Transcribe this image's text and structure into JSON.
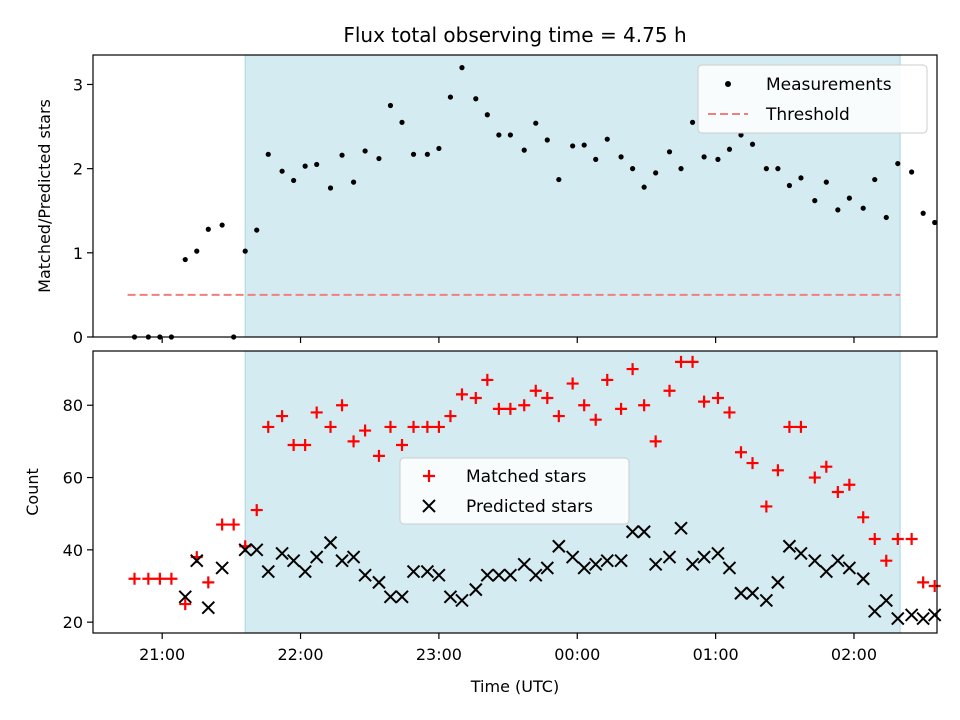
{
  "chart_data": [
    {
      "type": "scatter",
      "title": "Flux total observing time = 4.75 h",
      "xlabel": "",
      "ylabel": "Matched/Predicted stars",
      "xlim": [
        "20:30",
        "02:36"
      ],
      "ylim": [
        0,
        3.35
      ],
      "yticks": [
        0,
        1,
        2,
        3
      ],
      "shaded_region": [
        "21:36",
        "02:20"
      ],
      "legend": {
        "placement": "top-right",
        "entries": [
          "Measurements",
          "Threshold"
        ]
      },
      "threshold": {
        "name": "Threshold",
        "value": 0.5,
        "x": [
          "20:45",
          "02:20"
        ],
        "color": "#f08080"
      },
      "series": [
        {
          "name": "Measurements",
          "color": "#000000",
          "points": [
            [
              "20:48",
              0.0
            ],
            [
              "20:54",
              0.0
            ],
            [
              "20:59",
              0.0
            ],
            [
              "21:04",
              0.0
            ],
            [
              "21:10",
              0.92
            ],
            [
              "21:15",
              1.02
            ],
            [
              "21:20",
              1.28
            ],
            [
              "21:26",
              1.33
            ],
            [
              "21:31",
              0.0
            ],
            [
              "21:36",
              1.02
            ],
            [
              "21:41",
              1.27
            ],
            [
              "21:46",
              2.17
            ],
            [
              "21:52",
              1.97
            ],
            [
              "21:57",
              1.86
            ],
            [
              "22:02",
              2.03
            ],
            [
              "22:07",
              2.05
            ],
            [
              "22:13",
              1.77
            ],
            [
              "22:18",
              2.16
            ],
            [
              "22:23",
              1.84
            ],
            [
              "22:28",
              2.21
            ],
            [
              "22:34",
              2.12
            ],
            [
              "22:39",
              2.75
            ],
            [
              "22:44",
              2.55
            ],
            [
              "22:49",
              2.17
            ],
            [
              "22:55",
              2.17
            ],
            [
              "23:00",
              2.24
            ],
            [
              "23:05",
              2.85
            ],
            [
              "23:10",
              3.2
            ],
            [
              "23:16",
              2.83
            ],
            [
              "23:21",
              2.64
            ],
            [
              "23:26",
              2.4
            ],
            [
              "23:31",
              2.4
            ],
            [
              "23:37",
              2.22
            ],
            [
              "23:42",
              2.54
            ],
            [
              "23:47",
              2.34
            ],
            [
              "23:52",
              1.87
            ],
            [
              "23:58",
              2.27
            ],
            [
              "00:03",
              2.28
            ],
            [
              "00:08",
              2.11
            ],
            [
              "00:13",
              2.35
            ],
            [
              "00:19",
              2.14
            ],
            [
              "00:24",
              2.0
            ],
            [
              "00:29",
              1.78
            ],
            [
              "00:34",
              1.95
            ],
            [
              "00:40",
              2.2
            ],
            [
              "00:45",
              2.0
            ],
            [
              "00:50",
              2.55
            ],
            [
              "00:55",
              2.14
            ],
            [
              "01:01",
              2.11
            ],
            [
              "01:06",
              2.23
            ],
            [
              "01:11",
              2.4
            ],
            [
              "01:16",
              2.29
            ],
            [
              "01:22",
              2.0
            ],
            [
              "01:27",
              2.0
            ],
            [
              "01:32",
              1.8
            ],
            [
              "01:37",
              1.89
            ],
            [
              "01:43",
              1.62
            ],
            [
              "01:48",
              1.84
            ],
            [
              "01:53",
              1.51
            ],
            [
              "01:58",
              1.65
            ],
            [
              "02:04",
              1.53
            ],
            [
              "02:09",
              1.87
            ],
            [
              "02:14",
              1.42
            ],
            [
              "02:19",
              2.06
            ],
            [
              "02:25",
              1.96
            ],
            [
              "02:30",
              1.47
            ],
            [
              "02:35",
              1.36
            ]
          ]
        }
      ]
    },
    {
      "type": "scatter",
      "title": "",
      "xlabel": "Time (UTC)",
      "ylabel": "Count",
      "xlim": [
        "20:30",
        "02:36"
      ],
      "ylim": [
        17,
        95
      ],
      "yticks": [
        20,
        40,
        60,
        80
      ],
      "xticks": [
        "21:00",
        "22:00",
        "23:00",
        "00:00",
        "01:00",
        "02:00"
      ],
      "shaded_region": [
        "21:36",
        "02:20"
      ],
      "legend": {
        "placement": "center",
        "entries": [
          "Matched stars",
          "Predicted stars"
        ]
      },
      "series": [
        {
          "name": "Matched stars",
          "marker": "plus",
          "color": "#ff0000",
          "points": [
            [
              "20:48",
              32
            ],
            [
              "20:54",
              32
            ],
            [
              "20:59",
              32
            ],
            [
              "21:04",
              32
            ],
            [
              "21:10",
              25
            ],
            [
              "21:15",
              38
            ],
            [
              "21:20",
              31
            ],
            [
              "21:26",
              47
            ],
            [
              "21:31",
              47
            ],
            [
              "21:36",
              41
            ],
            [
              "21:41",
              51
            ],
            [
              "21:46",
              74
            ],
            [
              "21:52",
              77
            ],
            [
              "21:57",
              69
            ],
            [
              "22:02",
              69
            ],
            [
              "22:07",
              78
            ],
            [
              "22:13",
              74
            ],
            [
              "22:18",
              80
            ],
            [
              "22:23",
              70
            ],
            [
              "22:28",
              73
            ],
            [
              "22:34",
              66
            ],
            [
              "22:39",
              74
            ],
            [
              "22:44",
              69
            ],
            [
              "22:49",
              74
            ],
            [
              "22:55",
              74
            ],
            [
              "23:00",
              74
            ],
            [
              "23:05",
              77
            ],
            [
              "23:10",
              83
            ],
            [
              "23:16",
              82
            ],
            [
              "23:21",
              87
            ],
            [
              "23:26",
              79
            ],
            [
              "23:31",
              79
            ],
            [
              "23:37",
              80
            ],
            [
              "23:42",
              84
            ],
            [
              "23:47",
              82
            ],
            [
              "23:52",
              77
            ],
            [
              "23:58",
              86
            ],
            [
              "00:03",
              80
            ],
            [
              "00:08",
              76
            ],
            [
              "00:13",
              87
            ],
            [
              "00:19",
              79
            ],
            [
              "00:24",
              90
            ],
            [
              "00:29",
              80
            ],
            [
              "00:34",
              70
            ],
            [
              "00:40",
              84
            ],
            [
              "00:45",
              92
            ],
            [
              "00:50",
              92
            ],
            [
              "00:55",
              81
            ],
            [
              "01:01",
              82
            ],
            [
              "01:06",
              78
            ],
            [
              "01:11",
              67
            ],
            [
              "01:16",
              64
            ],
            [
              "01:22",
              52
            ],
            [
              "01:27",
              62
            ],
            [
              "01:32",
              74
            ],
            [
              "01:37",
              74
            ],
            [
              "01:43",
              60
            ],
            [
              "01:48",
              63
            ],
            [
              "01:53",
              56
            ],
            [
              "01:58",
              58
            ],
            [
              "02:04",
              49
            ],
            [
              "02:09",
              43
            ],
            [
              "02:14",
              37
            ],
            [
              "02:19",
              43
            ],
            [
              "02:25",
              43
            ],
            [
              "02:30",
              31
            ],
            [
              "02:35",
              30
            ]
          ]
        },
        {
          "name": "Predicted stars",
          "marker": "x",
          "color": "#000000",
          "points": [
            [
              "21:10",
              27
            ],
            [
              "21:15",
              37
            ],
            [
              "21:20",
              24
            ],
            [
              "21:26",
              35
            ],
            [
              "21:36",
              40
            ],
            [
              "21:41",
              40
            ],
            [
              "21:46",
              34
            ],
            [
              "21:52",
              39
            ],
            [
              "21:57",
              37
            ],
            [
              "22:02",
              34
            ],
            [
              "22:07",
              38
            ],
            [
              "22:13",
              42
            ],
            [
              "22:18",
              37
            ],
            [
              "22:23",
              38
            ],
            [
              "22:28",
              33
            ],
            [
              "22:34",
              31
            ],
            [
              "22:39",
              27
            ],
            [
              "22:44",
              27
            ],
            [
              "22:49",
              34
            ],
            [
              "22:55",
              34
            ],
            [
              "23:00",
              33
            ],
            [
              "23:05",
              27
            ],
            [
              "23:10",
              26
            ],
            [
              "23:16",
              29
            ],
            [
              "23:21",
              33
            ],
            [
              "23:26",
              33
            ],
            [
              "23:31",
              33
            ],
            [
              "23:37",
              36
            ],
            [
              "23:42",
              33
            ],
            [
              "23:47",
              35
            ],
            [
              "23:52",
              41
            ],
            [
              "23:58",
              38
            ],
            [
              "00:03",
              35
            ],
            [
              "00:08",
              36
            ],
            [
              "00:13",
              37
            ],
            [
              "00:19",
              37
            ],
            [
              "00:24",
              45
            ],
            [
              "00:29",
              45
            ],
            [
              "00:34",
              36
            ],
            [
              "00:40",
              38
            ],
            [
              "00:45",
              46
            ],
            [
              "00:50",
              36
            ],
            [
              "00:55",
              38
            ],
            [
              "01:01",
              39
            ],
            [
              "01:06",
              35
            ],
            [
              "01:11",
              28
            ],
            [
              "01:16",
              28
            ],
            [
              "01:22",
              26
            ],
            [
              "01:27",
              31
            ],
            [
              "01:32",
              41
            ],
            [
              "01:37",
              39
            ],
            [
              "01:43",
              37
            ],
            [
              "01:48",
              34
            ],
            [
              "01:53",
              37
            ],
            [
              "01:58",
              35
            ],
            [
              "02:04",
              32
            ],
            [
              "02:09",
              23
            ],
            [
              "02:14",
              26
            ],
            [
              "02:19",
              21
            ],
            [
              "02:25",
              22
            ],
            [
              "02:30",
              21
            ],
            [
              "02:35",
              22
            ]
          ]
        }
      ]
    }
  ],
  "colors": {
    "shade": "#d4ebf1",
    "shade_edge": "#a9d6e0",
    "axis": "#000000"
  }
}
